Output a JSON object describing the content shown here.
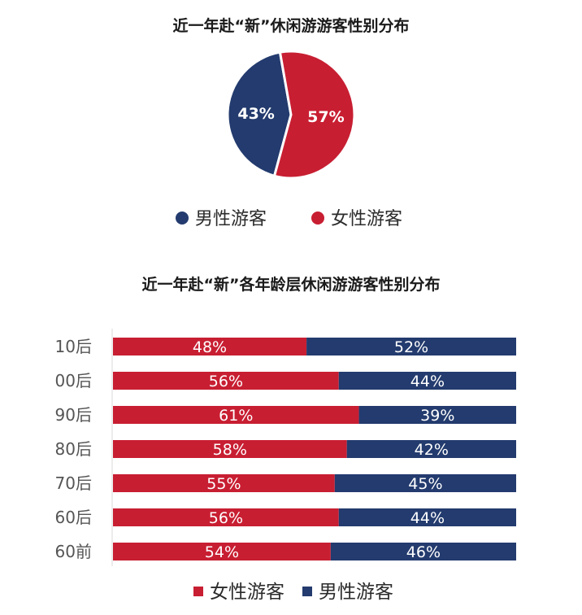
{
  "colors": {
    "female": "#c81e32",
    "male": "#233b6e"
  },
  "chart_data": [
    {
      "type": "pie",
      "title": "近一年赴“新”休闲游游客性别分布",
      "slices": [
        {
          "label": "男性游客",
          "value": 43,
          "display": "43%",
          "color": "#233b6e"
        },
        {
          "label": "女性游客",
          "value": 57,
          "display": "57%",
          "color": "#c81e32"
        }
      ],
      "legend": [
        "男性游客",
        "女性游客"
      ],
      "legend_position": "bottom"
    },
    {
      "type": "bar",
      "orientation": "horizontal-stacked-100",
      "title": "近一年赴“新”各年龄层休闲游游客性别分布",
      "categories": [
        "10后",
        "00后",
        "90后",
        "80后",
        "70后",
        "60后",
        "60前"
      ],
      "series": [
        {
          "name": "女性游客",
          "color": "#c81e32",
          "values": [
            48,
            56,
            61,
            58,
            55,
            56,
            54
          ],
          "labels": [
            "48%",
            "56%",
            "61%",
            "58%",
            "55%",
            "56%",
            "54%"
          ]
        },
        {
          "name": "男性游客",
          "color": "#233b6e",
          "values": [
            52,
            44,
            39,
            42,
            45,
            44,
            46
          ],
          "labels": [
            "52%",
            "44%",
            "39%",
            "42%",
            "45%",
            "44%",
            "46%"
          ]
        }
      ],
      "legend_position": "bottom",
      "xlim": [
        0,
        100
      ]
    }
  ]
}
